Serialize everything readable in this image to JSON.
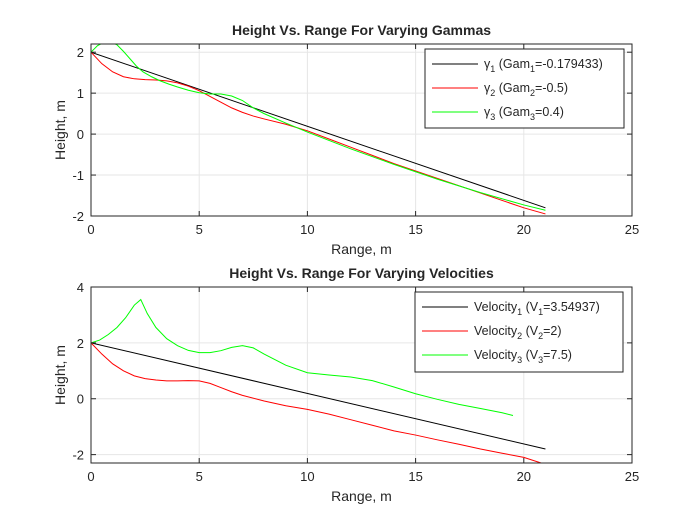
{
  "figure": {
    "background": "#ffffff",
    "axes_color": "#262626",
    "grid_color": "#e6e6e6"
  },
  "chart_data": [
    {
      "type": "line",
      "title": "Height Vs. Range For Varying Gammas",
      "xlabel": "Range, m",
      "ylabel": "Height, m",
      "xlim": [
        0,
        25
      ],
      "ylim": [
        -2,
        2.2
      ],
      "xticks": [
        0,
        5,
        10,
        15,
        20,
        25
      ],
      "yticks": [
        -2,
        -1,
        0,
        1,
        2
      ],
      "grid": true,
      "legend_position": "top-right",
      "series": [
        {
          "legend_main": "γ",
          "legend_sub": "1",
          "legend_rest_pre": " (Gam",
          "legend_sub2": "1",
          "legend_rest_post": "=-0.179433)",
          "color": "#000000",
          "x": [
            0,
            21
          ],
          "y": [
            2,
            -1.8
          ]
        },
        {
          "legend_main": "γ",
          "legend_sub": "2",
          "legend_rest_pre": " (Gam",
          "legend_sub2": "2",
          "legend_rest_post": "=-0.5)",
          "color": "#ff0000",
          "x": [
            0,
            0.5,
            1,
            1.5,
            2,
            2.5,
            3,
            3.5,
            4,
            4.5,
            5,
            5.5,
            6,
            6.5,
            7,
            7.5,
            8,
            9,
            10,
            11,
            12,
            13,
            14,
            15,
            16,
            17,
            18,
            19,
            20,
            21
          ],
          "y": [
            2,
            1.72,
            1.52,
            1.4,
            1.35,
            1.33,
            1.32,
            1.3,
            1.25,
            1.17,
            1.06,
            0.92,
            0.78,
            0.64,
            0.53,
            0.44,
            0.37,
            0.24,
            0.08,
            -0.12,
            -0.32,
            -0.52,
            -0.72,
            -0.9,
            -1.08,
            -1.26,
            -1.44,
            -1.62,
            -1.8,
            -1.95
          ]
        },
        {
          "legend_main": "γ",
          "legend_sub": "3",
          "legend_rest_pre": " (Gam",
          "legend_sub2": "3",
          "legend_rest_post": "=0.4)",
          "color": "#00ff00",
          "x": [
            0,
            0.3,
            0.6,
            0.9,
            1.2,
            1.5,
            1.8,
            2.1,
            2.4,
            2.8,
            3.2,
            3.6,
            4,
            4.5,
            5,
            5.5,
            6,
            6.5,
            7,
            7.5,
            8,
            9,
            10,
            12,
            14,
            16,
            18,
            20,
            21
          ],
          "y": [
            2,
            2.16,
            2.24,
            2.25,
            2.18,
            2.02,
            1.84,
            1.66,
            1.52,
            1.4,
            1.3,
            1.22,
            1.15,
            1.07,
            1.01,
            0.98,
            0.98,
            0.93,
            0.82,
            0.64,
            0.5,
            0.27,
            0.05,
            -0.36,
            -0.74,
            -1.1,
            -1.43,
            -1.73,
            -1.86
          ]
        }
      ]
    },
    {
      "type": "line",
      "title": "Height Vs. Range For Varying Velocities",
      "xlabel": "Range, m",
      "ylabel": "Height, m",
      "xlim": [
        0,
        25
      ],
      "ylim": [
        -2.3,
        4
      ],
      "xticks": [
        0,
        5,
        10,
        15,
        20,
        25
      ],
      "yticks": [
        -2,
        0,
        2,
        4
      ],
      "grid": true,
      "legend_position": "top-right",
      "series": [
        {
          "legend_main": "Velocity",
          "legend_sub": "1",
          "legend_rest_pre": " (V",
          "legend_sub2": "1",
          "legend_rest_post": "=3.54937)",
          "color": "#000000",
          "x": [
            0,
            21
          ],
          "y": [
            2,
            -1.8
          ]
        },
        {
          "legend_main": "Velocity",
          "legend_sub": "2",
          "legend_rest_pre": " (V",
          "legend_sub2": "2",
          "legend_rest_post": "=2)",
          "color": "#ff0000",
          "x": [
            0,
            0.5,
            1,
            1.5,
            2,
            2.5,
            3,
            3.5,
            4,
            4.5,
            5,
            5.5,
            6,
            6.5,
            7,
            8,
            9,
            10,
            11,
            12,
            13,
            14,
            15,
            16,
            17,
            18,
            19,
            20,
            20.8
          ],
          "y": [
            2,
            1.6,
            1.25,
            1.0,
            0.82,
            0.72,
            0.67,
            0.64,
            0.64,
            0.65,
            0.64,
            0.55,
            0.4,
            0.25,
            0.12,
            -0.08,
            -0.25,
            -0.38,
            -0.55,
            -0.75,
            -0.95,
            -1.15,
            -1.3,
            -1.47,
            -1.63,
            -1.8,
            -1.95,
            -2.1,
            -2.3
          ]
        },
        {
          "legend_main": "Velocity",
          "legend_sub": "3",
          "legend_rest_pre": " (V",
          "legend_sub2": "3",
          "legend_rest_post": "=7.5)",
          "color": "#00ff00",
          "x": [
            0,
            0.4,
            0.8,
            1.2,
            1.6,
            2.0,
            2.3,
            2.6,
            3.0,
            3.5,
            4,
            4.5,
            5,
            5.5,
            6,
            6.5,
            7,
            7.5,
            8,
            9,
            10,
            11,
            12,
            13,
            14,
            15,
            16,
            17,
            18,
            19,
            19.5
          ],
          "y": [
            2,
            2.1,
            2.3,
            2.55,
            2.9,
            3.35,
            3.55,
            3.05,
            2.55,
            2.15,
            1.9,
            1.73,
            1.65,
            1.65,
            1.72,
            1.84,
            1.9,
            1.82,
            1.6,
            1.2,
            0.93,
            0.85,
            0.78,
            0.65,
            0.42,
            0.18,
            -0.02,
            -0.2,
            -0.35,
            -0.5,
            -0.6
          ]
        }
      ]
    }
  ]
}
